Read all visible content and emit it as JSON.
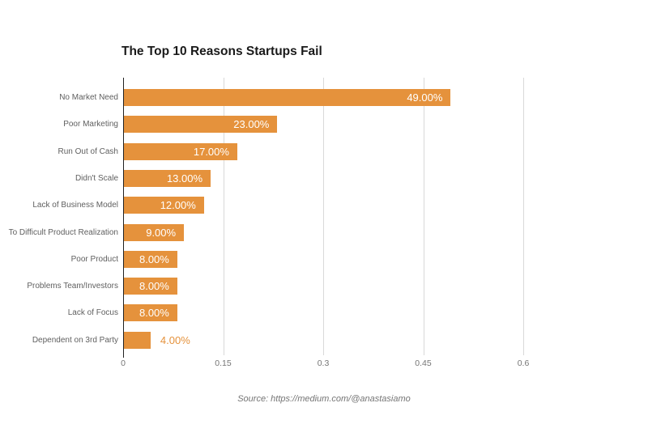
{
  "source": "Source: https://medium.com/@anastasiamo",
  "colors": {
    "bar": "#E5923C",
    "value_label_inside": "#FFFFFF",
    "value_label_outside": "#E5923C",
    "gridline": "#D9D9D9",
    "axis_line": "#212121",
    "category_label": "#5F5F5F",
    "tick_label": "#757575",
    "title": "#1A1A1A",
    "source": "#757575"
  },
  "chart_data": {
    "type": "bar",
    "orientation": "horizontal",
    "title": "The Top 10 Reasons Startups Fail",
    "categories": [
      "No Market Need",
      "Poor Marketing",
      "Run Out of Cash",
      "Didn't Scale",
      "Lack of Business Model",
      "To Difficult Product Realization",
      "Poor Product",
      "Problems Team/Investors",
      "Lack of Focus",
      "Dependent on 3rd Party"
    ],
    "values": [
      0.49,
      0.23,
      0.17,
      0.13,
      0.12,
      0.09,
      0.08,
      0.08,
      0.08,
      0.04
    ],
    "labels": [
      "49.00%",
      "23.00%",
      "17.00%",
      "13.00%",
      "12.00%",
      "9.00%",
      "8.00%",
      "8.00%",
      "8.00%",
      "4.00%"
    ],
    "xlabel": "",
    "ylabel": "",
    "xlim": [
      0,
      0.6
    ],
    "xticks": [
      "0",
      "0.15",
      "0.3",
      "0.45",
      "0.6"
    ],
    "grid": true,
    "legend": false
  }
}
